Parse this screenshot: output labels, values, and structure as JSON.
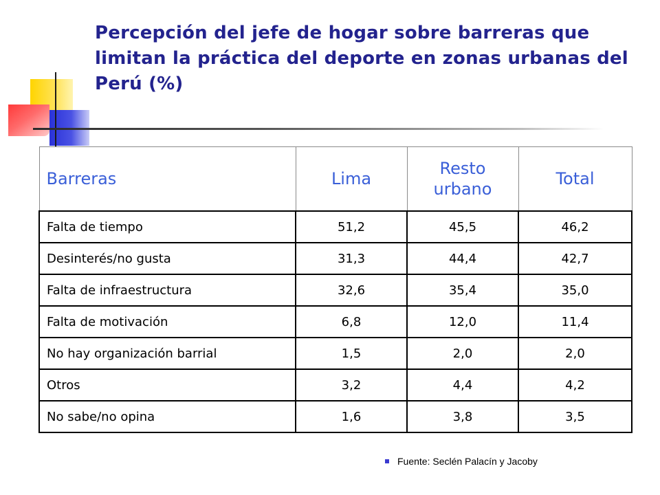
{
  "title": "Percepción del jefe de hogar sobre barreras que limitan la práctica del deporte en zonas urbanas del Perú (%)",
  "table": {
    "headers": [
      "Barreras",
      "Lima",
      "Resto urbano",
      "Total"
    ],
    "rows": [
      [
        "Falta de tiempo",
        "51,2",
        "45,5",
        "46,2"
      ],
      [
        "Desinterés/no gusta",
        "31,3",
        "44,4",
        "42,7"
      ],
      [
        "Falta de infraestructura",
        "32,6",
        "35,4",
        "35,0"
      ],
      [
        "Falta de motivación",
        "6,8",
        "12,0",
        "11,4"
      ],
      [
        "No hay organización barrial",
        "1,5",
        "2,0",
        "2,0"
      ],
      [
        "Otros",
        "3,2",
        "4,4",
        "4,2"
      ],
      [
        "No sabe/no opina",
        "1,6",
        "3,8",
        "3,5"
      ]
    ]
  },
  "source": "Fuente: Seclén Palacín y Jacoby",
  "colors": {
    "title": "#23238e",
    "header_text": "#3a5fd8",
    "accent_yellow": "#ffd400",
    "accent_blue": "#2a32d8",
    "accent_red": "#ff3a3a"
  }
}
